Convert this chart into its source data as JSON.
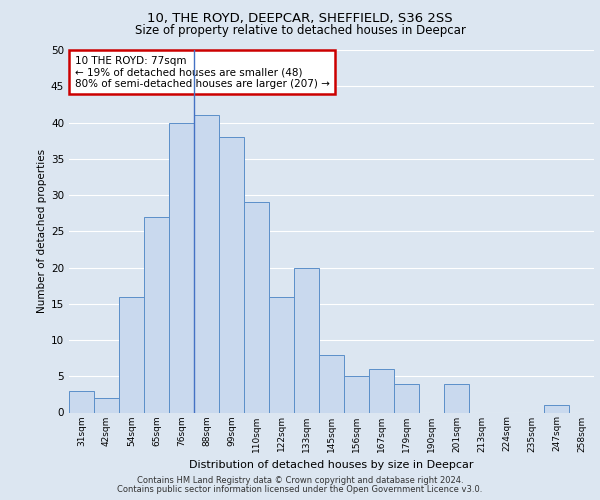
{
  "title_line1": "10, THE ROYD, DEEPCAR, SHEFFIELD, S36 2SS",
  "title_line2": "Size of property relative to detached houses in Deepcar",
  "xlabel": "Distribution of detached houses by size in Deepcar",
  "ylabel": "Number of detached properties",
  "bar_labels": [
    "31sqm",
    "42sqm",
    "54sqm",
    "65sqm",
    "76sqm",
    "88sqm",
    "99sqm",
    "110sqm",
    "122sqm",
    "133sqm",
    "145sqm",
    "156sqm",
    "167sqm",
    "179sqm",
    "190sqm",
    "201sqm",
    "213sqm",
    "224sqm",
    "235sqm",
    "247sqm",
    "258sqm"
  ],
  "bar_values": [
    3,
    2,
    16,
    27,
    40,
    41,
    38,
    29,
    16,
    20,
    8,
    5,
    6,
    4,
    0,
    4,
    0,
    0,
    0,
    1,
    0
  ],
  "bar_color": "#c9d9ee",
  "bar_edge_color": "#5b8fc9",
  "highlight_bar_index": 4,
  "highlight_line_color": "#4472c4",
  "annotation_text": "10 THE ROYD: 77sqm\n← 19% of detached houses are smaller (48)\n80% of semi-detached houses are larger (207) →",
  "annotation_box_color": "#ffffff",
  "annotation_box_edge_color": "#cc0000",
  "ylim": [
    0,
    50
  ],
  "yticks": [
    0,
    5,
    10,
    15,
    20,
    25,
    30,
    35,
    40,
    45,
    50
  ],
  "background_color": "#dce6f1",
  "grid_color": "#ffffff",
  "footer_line1": "Contains HM Land Registry data © Crown copyright and database right 2024.",
  "footer_line2": "Contains public sector information licensed under the Open Government Licence v3.0."
}
